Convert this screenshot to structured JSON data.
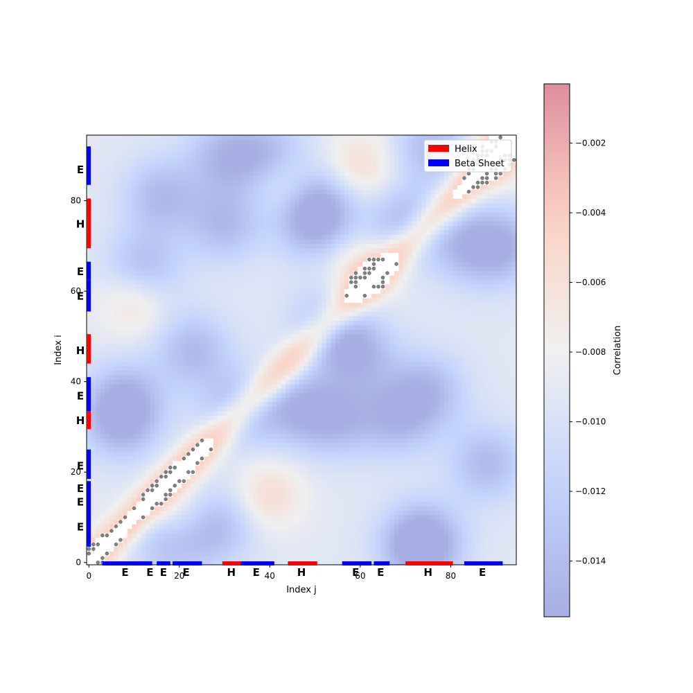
{
  "chart_data": {
    "type": "heatmap",
    "title": "",
    "xlabel": "Index j",
    "ylabel": "Index i",
    "xlim": [
      -0.5,
      94.5
    ],
    "ylim": [
      -0.5,
      94.5
    ],
    "xticks": [
      0,
      20,
      40,
      60,
      80
    ],
    "yticks": [
      0,
      20,
      40,
      60,
      80
    ],
    "xtick_labels": [
      "0",
      "20",
      "40",
      "60",
      "80"
    ],
    "ytick_labels": [
      "0",
      "20",
      "40",
      "60",
      "80"
    ],
    "colorbar": {
      "label": "Correlation",
      "range": [
        -0.0156,
        -0.0003
      ],
      "ticks": [
        -0.002,
        -0.004,
        -0.006,
        -0.008,
        -0.01,
        -0.012,
        -0.014
      ],
      "tick_labels": [
        "−0.002",
        "−0.004",
        "−0.006",
        "−0.008",
        "−0.010",
        "−0.012",
        "−0.014"
      ],
      "colormap": "coolwarm",
      "alpha": 0.45
    },
    "blue_centers": [
      [
        16,
        81
      ],
      [
        12,
        65
      ],
      [
        53,
        52
      ],
      [
        23,
        47
      ],
      [
        8,
        36
      ],
      [
        33,
        34
      ],
      [
        46,
        34
      ],
      [
        7,
        31
      ],
      [
        60,
        46
      ],
      [
        75,
        38
      ],
      [
        68,
        32
      ],
      [
        28,
        8
      ],
      [
        18,
        5
      ],
      [
        74,
        5
      ],
      [
        73,
        3
      ],
      [
        88,
        22
      ],
      [
        92,
        70
      ],
      [
        84,
        70
      ],
      [
        70,
        75
      ],
      [
        50,
        75
      ],
      [
        50,
        80
      ],
      [
        30,
        75
      ],
      [
        30,
        90
      ],
      [
        76,
        92
      ],
      [
        40,
        90
      ],
      [
        55,
        32
      ]
    ],
    "red_centers": [
      [
        44,
        84
      ],
      [
        60,
        65
      ],
      [
        20,
        10
      ],
      [
        40,
        15
      ],
      [
        10,
        58
      ],
      [
        90,
        90
      ],
      [
        60,
        88
      ]
    ],
    "contact_points": "sparse grey dots clustered along the diagonal band i≈j and several off-diagonal blocks; positions read approximately from the image",
    "secondary_structure": {
      "legend": [
        {
          "label": "Helix",
          "color": "#ff0000"
        },
        {
          "label": "Beta Sheet",
          "color": "#0000ff"
        }
      ],
      "legend_position": "top-right",
      "segments": [
        {
          "type": "E",
          "start": 3,
          "end": 14
        },
        {
          "type": "E",
          "start": 15,
          "end": 18
        },
        {
          "type": "E",
          "start": 18.5,
          "end": 25
        },
        {
          "type": "H",
          "start": 29.5,
          "end": 33.5
        },
        {
          "type": "E",
          "start": 33.5,
          "end": 41
        },
        {
          "type": "H",
          "start": 44,
          "end": 50.5
        },
        {
          "type": "E",
          "start": 56,
          "end": 62.5
        },
        {
          "type": "E",
          "start": 63,
          "end": 66.5
        },
        {
          "type": "H",
          "start": 70,
          "end": 80.5
        },
        {
          "type": "E",
          "start": 83,
          "end": 91.5
        }
      ],
      "side_segments": [
        {
          "type": "E",
          "start": 3.5,
          "end": 15
        },
        {
          "type": "E",
          "start": 15,
          "end": 18
        },
        {
          "type": "E",
          "start": 18.5,
          "end": 25
        },
        {
          "type": "H",
          "start": 29.5,
          "end": 33.5
        },
        {
          "type": "E",
          "start": 33.5,
          "end": 41
        },
        {
          "type": "H",
          "start": 44,
          "end": 50.5
        },
        {
          "type": "E",
          "start": 55.5,
          "end": 62.5
        },
        {
          "type": "E",
          "start": 62.5,
          "end": 66.5
        },
        {
          "type": "H",
          "start": 69.5,
          "end": 80.5
        },
        {
          "type": "E",
          "start": 83.5,
          "end": 92
        }
      ],
      "bottom_labels": [
        {
          "text": "E",
          "pos": 8
        },
        {
          "text": "E",
          "pos": 13.5
        },
        {
          "text": "E",
          "pos": 16.5
        },
        {
          "text": "E",
          "pos": 21.5
        },
        {
          "text": "H",
          "pos": 31.5
        },
        {
          "text": "E",
          "pos": 37
        },
        {
          "text": "H",
          "pos": 47
        },
        {
          "text": "E",
          "pos": 59
        },
        {
          "text": "E",
          "pos": 64.5
        },
        {
          "text": "H",
          "pos": 75
        },
        {
          "text": "E",
          "pos": 87
        }
      ],
      "side_labels": [
        {
          "text": "E",
          "pos": 8
        },
        {
          "text": "E",
          "pos": 13.5
        },
        {
          "text": "E",
          "pos": 16.5
        },
        {
          "text": "E",
          "pos": 21.5
        },
        {
          "text": "H",
          "pos": 31.5
        },
        {
          "text": "E",
          "pos": 37
        },
        {
          "text": "H",
          "pos": 47
        },
        {
          "text": "E",
          "pos": 59
        },
        {
          "text": "E",
          "pos": 64.5
        },
        {
          "text": "H",
          "pos": 75
        },
        {
          "text": "E",
          "pos": 87
        }
      ]
    }
  }
}
